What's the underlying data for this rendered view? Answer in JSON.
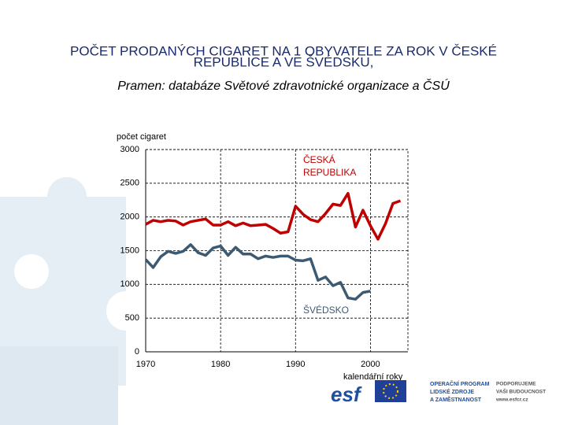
{
  "chart_data": {
    "type": "line",
    "title": [
      "POČET PRODANÝCH CIGARET NA 1 OBYVATELE ZA ROK V ČESKÉ",
      "REPUBLICE A VE ŠVÉDSKU,"
    ],
    "subtitle": "Pramen: databáze Světové zdravotnické organizace a ČSÚ",
    "y_label": "počet cigaret",
    "x_label": "kalendářní roky",
    "x": [
      1970,
      1971,
      1972,
      1973,
      1974,
      1975,
      1976,
      1977,
      1978,
      1979,
      1980,
      1981,
      1982,
      1983,
      1984,
      1985,
      1986,
      1987,
      1988,
      1989,
      1990,
      1991,
      1992,
      1993,
      1994,
      1995,
      1996,
      1997,
      1998,
      1999,
      2000,
      2001,
      2002,
      2003,
      2004
    ],
    "series": [
      {
        "name": [
          "ČESKÁ",
          "REPUBLIKA"
        ],
        "color": "#c00000",
        "values": [
          1890,
          1950,
          1930,
          1950,
          1940,
          1880,
          1930,
          1950,
          1970,
          1880,
          1880,
          1930,
          1870,
          1910,
          1870,
          1880,
          1890,
          1830,
          1760,
          1780,
          2160,
          2040,
          1960,
          1930,
          2050,
          2190,
          2170,
          2350,
          1850,
          2100,
          1870,
          1670,
          1900,
          2200,
          2240
        ]
      },
      {
        "name": [
          "ŠVÉDSKO"
        ],
        "color": "#3d5a73",
        "values": [
          1370,
          1250,
          1410,
          1490,
          1460,
          1490,
          1590,
          1470,
          1430,
          1540,
          1570,
          1430,
          1550,
          1450,
          1450,
          1380,
          1420,
          1400,
          1420,
          1420,
          1360,
          1350,
          1380,
          1060,
          1110,
          980,
          1030,
          800,
          780,
          880,
          900,
          null,
          null,
          null,
          null
        ]
      }
    ],
    "xlim": [
      1970,
      2005
    ],
    "xticks": [
      1970,
      1980,
      1990,
      2000
    ],
    "ylim": [
      0,
      3000
    ],
    "yticks": [
      0,
      500,
      1000,
      1500,
      2000,
      2500,
      3000
    ],
    "grid": true
  },
  "footer": {
    "logo": "esf",
    "program": [
      "OPERAČNÍ PROGRAM",
      "LIDSKÉ ZDROJE",
      "A ZAMĚSTNANOST"
    ],
    "slogan": [
      "PODPORUJEME",
      "VAŠI BUDOUCNOST",
      "www.esfcr.cz"
    ]
  }
}
